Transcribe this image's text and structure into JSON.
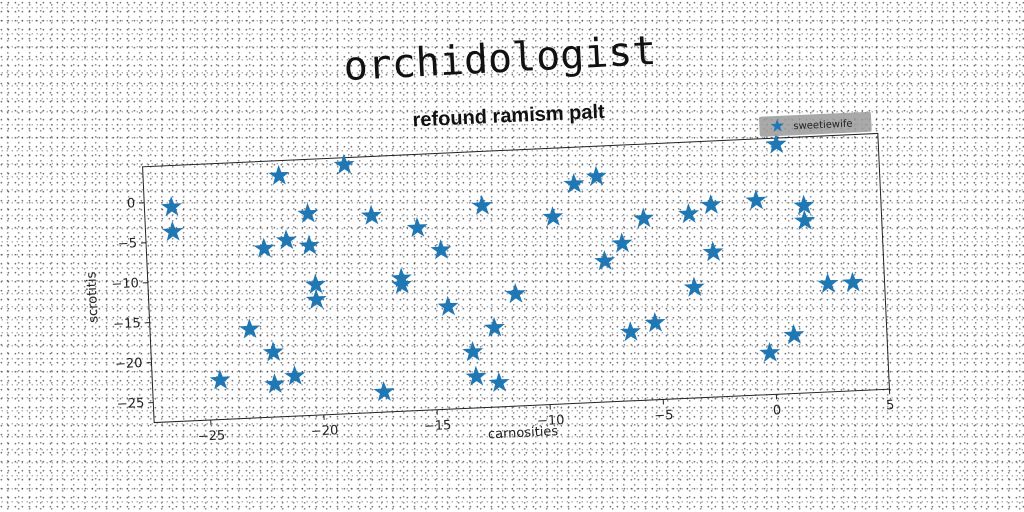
{
  "suptitle": "orchidologist",
  "chart_data": {
    "type": "scatter",
    "title": "refound ramism palt",
    "xlabel": "carnosities",
    "ylabel": "scrotitis",
    "xlim": [
      -27.5,
      5
    ],
    "ylim": [
      -27.5,
      4.5
    ],
    "xticks": [
      -25,
      -20,
      -15,
      -10,
      -5,
      0,
      5
    ],
    "yticks": [
      0,
      -5,
      -10,
      -15,
      -20,
      -25
    ],
    "grid": false,
    "legend_position": "top-right",
    "series": [
      {
        "name": "sweetiewife",
        "color": "#1f77b4",
        "marker": "star",
        "points": [
          [
            -26.3,
            -0.7
          ],
          [
            -26.3,
            -3.8
          ],
          [
            -24.5,
            -22.6
          ],
          [
            -23.1,
            -16.4
          ],
          [
            -22.3,
            -6.4
          ],
          [
            -22.1,
            -19.4
          ],
          [
            -22.1,
            -23.4
          ],
          [
            -21.5,
            2.6
          ],
          [
            -21.3,
            -5.5
          ],
          [
            -21.2,
            -22.5
          ],
          [
            -20.3,
            -2.3
          ],
          [
            -20.3,
            -6.3
          ],
          [
            -20.1,
            -11.2
          ],
          [
            -20.1,
            -13.1
          ],
          [
            -18.6,
            3.6
          ],
          [
            -17.5,
            -2.9
          ],
          [
            -17.3,
            -25.0
          ],
          [
            -16.3,
            -10.9
          ],
          [
            -16.3,
            -11.7
          ],
          [
            -15.5,
            -4.7
          ],
          [
            -14.5,
            -7.6
          ],
          [
            -14.3,
            -14.7
          ],
          [
            -13.3,
            -20.5
          ],
          [
            -13.2,
            -23.6
          ],
          [
            -12.6,
            -2.3
          ],
          [
            -12.3,
            -17.6
          ],
          [
            -12.2,
            -24.5
          ],
          [
            -11.3,
            -13.5
          ],
          [
            -9.5,
            -4.1
          ],
          [
            -8.5,
            -0.1
          ],
          [
            -7.5,
            0.7
          ],
          [
            -7.3,
            -9.9
          ],
          [
            -6.5,
            -7.8
          ],
          [
            -6.3,
            -18.9
          ],
          [
            -5.5,
            -4.8
          ],
          [
            -5.2,
            -17.9
          ],
          [
            -3.5,
            -4.5
          ],
          [
            -3.4,
            -13.7
          ],
          [
            -2.5,
            -3.5
          ],
          [
            -2.5,
            -9.4
          ],
          [
            -0.5,
            -3.2
          ],
          [
            -0.2,
            -22.3
          ],
          [
            0.5,
            3.7
          ],
          [
            0.9,
            -20.2
          ],
          [
            1.6,
            -4.1
          ],
          [
            1.6,
            -6.0
          ],
          [
            2.5,
            -14.0
          ],
          [
            3.6,
            -14.0
          ]
        ]
      }
    ]
  }
}
